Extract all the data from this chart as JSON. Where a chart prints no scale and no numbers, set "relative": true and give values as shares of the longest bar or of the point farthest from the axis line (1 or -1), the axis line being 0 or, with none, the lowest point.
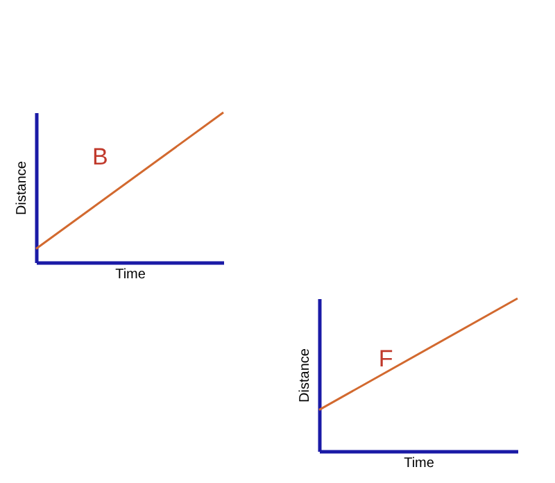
{
  "chart_data": [
    {
      "type": "line",
      "xlabel": "Time",
      "ylabel": "Distance",
      "categories": [
        null,
        null
      ],
      "relative": true,
      "tick_labels": false,
      "annotations": [
        "B"
      ],
      "series": [
        {
          "color": "#d2692f",
          "values": [
            0.09,
            1
          ]
        }
      ]
    },
    {
      "type": "line",
      "xlabel": "Time",
      "ylabel": "Distance",
      "categories": [
        null,
        null
      ],
      "relative": true,
      "tick_labels": false,
      "annotations": [
        "F"
      ],
      "series": [
        {
          "color": "#d2692f",
          "values": [
            0.27,
            1
          ]
        }
      ]
    }
  ]
}
